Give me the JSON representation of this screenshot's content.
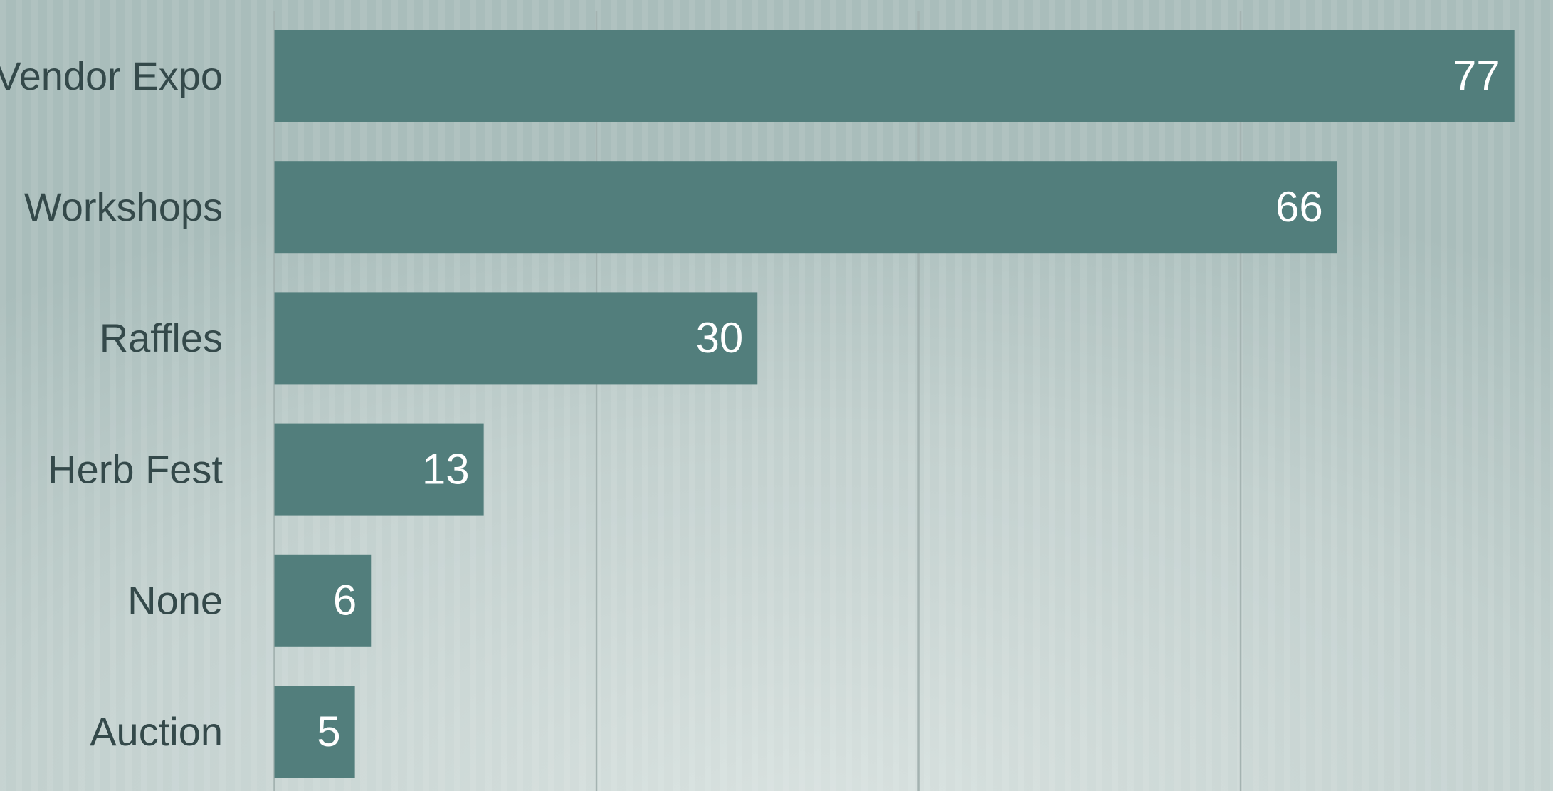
{
  "chart_data": {
    "type": "bar",
    "orientation": "horizontal",
    "categories": [
      "Vendor Expo",
      "Workshops",
      "Raffles",
      "Herb Fest",
      "None",
      "Auction"
    ],
    "values": [
      77,
      66,
      30,
      13,
      6,
      5
    ],
    "color": "#527e7c",
    "xlim": [
      0,
      79.4
    ],
    "xticks": [
      0,
      20,
      40,
      60
    ],
    "grid": true
  }
}
